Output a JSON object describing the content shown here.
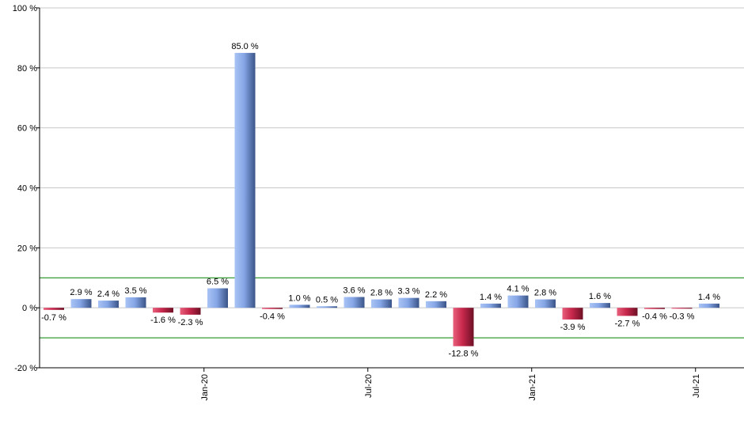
{
  "chart_data": {
    "type": "bar",
    "title": "",
    "xlabel": "",
    "ylabel": "",
    "ylim": [
      -20,
      100
    ],
    "y_ticks": [
      -20,
      0,
      20,
      40,
      60,
      80,
      100
    ],
    "y_tick_labels": [
      "-20 %",
      "0 %",
      "20 %",
      "40 %",
      "60 %",
      "80 %",
      "100 %"
    ],
    "grid": true,
    "reference_lines": [
      10,
      -10
    ],
    "reference_line_color": "#008000",
    "positive_color": "#7b9de0",
    "negative_color": "#c8284c",
    "values": [
      -0.7,
      2.9,
      2.4,
      3.5,
      -1.6,
      -2.3,
      6.5,
      85.0,
      -0.4,
      1.0,
      0.5,
      3.6,
      2.8,
      3.3,
      2.2,
      -12.8,
      1.4,
      4.1,
      2.8,
      -3.9,
      1.6,
      -2.7,
      -0.4,
      -0.3,
      1.4
    ],
    "data_labels": [
      "-0.7 %",
      "2.9 %",
      "2.4 %",
      "3.5 %",
      "-1.6 %",
      "-2.3 %",
      "6.5 %",
      "85.0 %",
      "-0.4 %",
      "1.0 %",
      "0.5 %",
      "3.6 %",
      "2.8 %",
      "3.3 %",
      "2.2 %",
      "-12.8 %",
      "1.4 %",
      "4.1 %",
      "2.8 %",
      "-3.9 %",
      "1.6 %",
      "-2.7 %",
      "-0.4 %",
      "-0.3 %",
      "1.4 %"
    ],
    "x_ticks": [
      {
        "label": "Jan-20",
        "position": 5.5
      },
      {
        "label": "Jul-20",
        "position": 11.5
      },
      {
        "label": "Jan-21",
        "position": 17.5
      },
      {
        "label": "Jul-21",
        "position": 23.5
      }
    ]
  }
}
